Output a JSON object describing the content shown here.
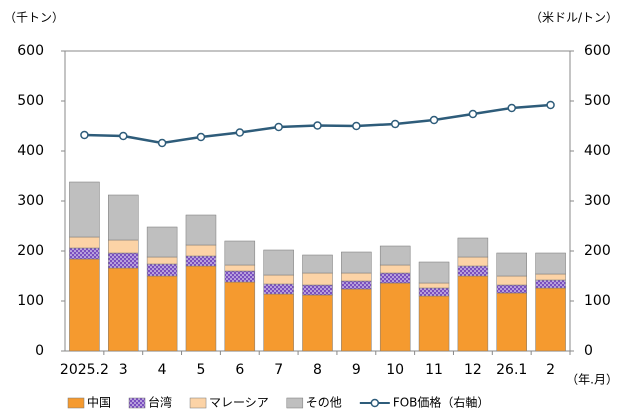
{
  "chart_data": {
    "type": "bar",
    "ylabel": "（千トン）",
    "y2label": "（米ドル/トン）",
    "xlabel": "（年.月）",
    "categories": [
      "2025.2",
      "3",
      "4",
      "5",
      "6",
      "7",
      "8",
      "9",
      "10",
      "11",
      "12",
      "26.1",
      "2"
    ],
    "stacked": true,
    "series": [
      {
        "name": "中国",
        "color": "#f59a2f",
        "values": [
          184,
          166,
          150,
          170,
          138,
          114,
          112,
          124,
          136,
          110,
          150,
          116,
          126
        ]
      },
      {
        "name": "台湾",
        "color": "#7a4fbf",
        "pattern": "dots",
        "values": [
          22,
          30,
          24,
          20,
          22,
          20,
          20,
          16,
          20,
          16,
          20,
          16,
          16
        ]
      },
      {
        "name": "マレーシア",
        "color": "#fcd3a6",
        "values": [
          22,
          26,
          14,
          22,
          12,
          18,
          24,
          16,
          16,
          10,
          18,
          18,
          12
        ]
      },
      {
        "name": "その他",
        "color": "#bfbfbf",
        "values": [
          110,
          90,
          60,
          60,
          48,
          50,
          36,
          42,
          38,
          42,
          38,
          46,
          42
        ]
      },
      {
        "name": "FOB価格（右軸）",
        "type": "line",
        "axis": "y2",
        "color": "#2e5c7a",
        "values": [
          432,
          430,
          416,
          428,
          437,
          448,
          451,
          450,
          454,
          462,
          474,
          486,
          492
        ]
      }
    ],
    "ylim": [
      0,
      600
    ],
    "yticks": [
      0,
      100,
      200,
      300,
      400,
      500,
      600
    ],
    "y2lim": [
      0,
      600
    ],
    "y2ticks": [
      0,
      100,
      200,
      300,
      400,
      500,
      600
    ],
    "grid": false,
    "legend": "bottom"
  }
}
